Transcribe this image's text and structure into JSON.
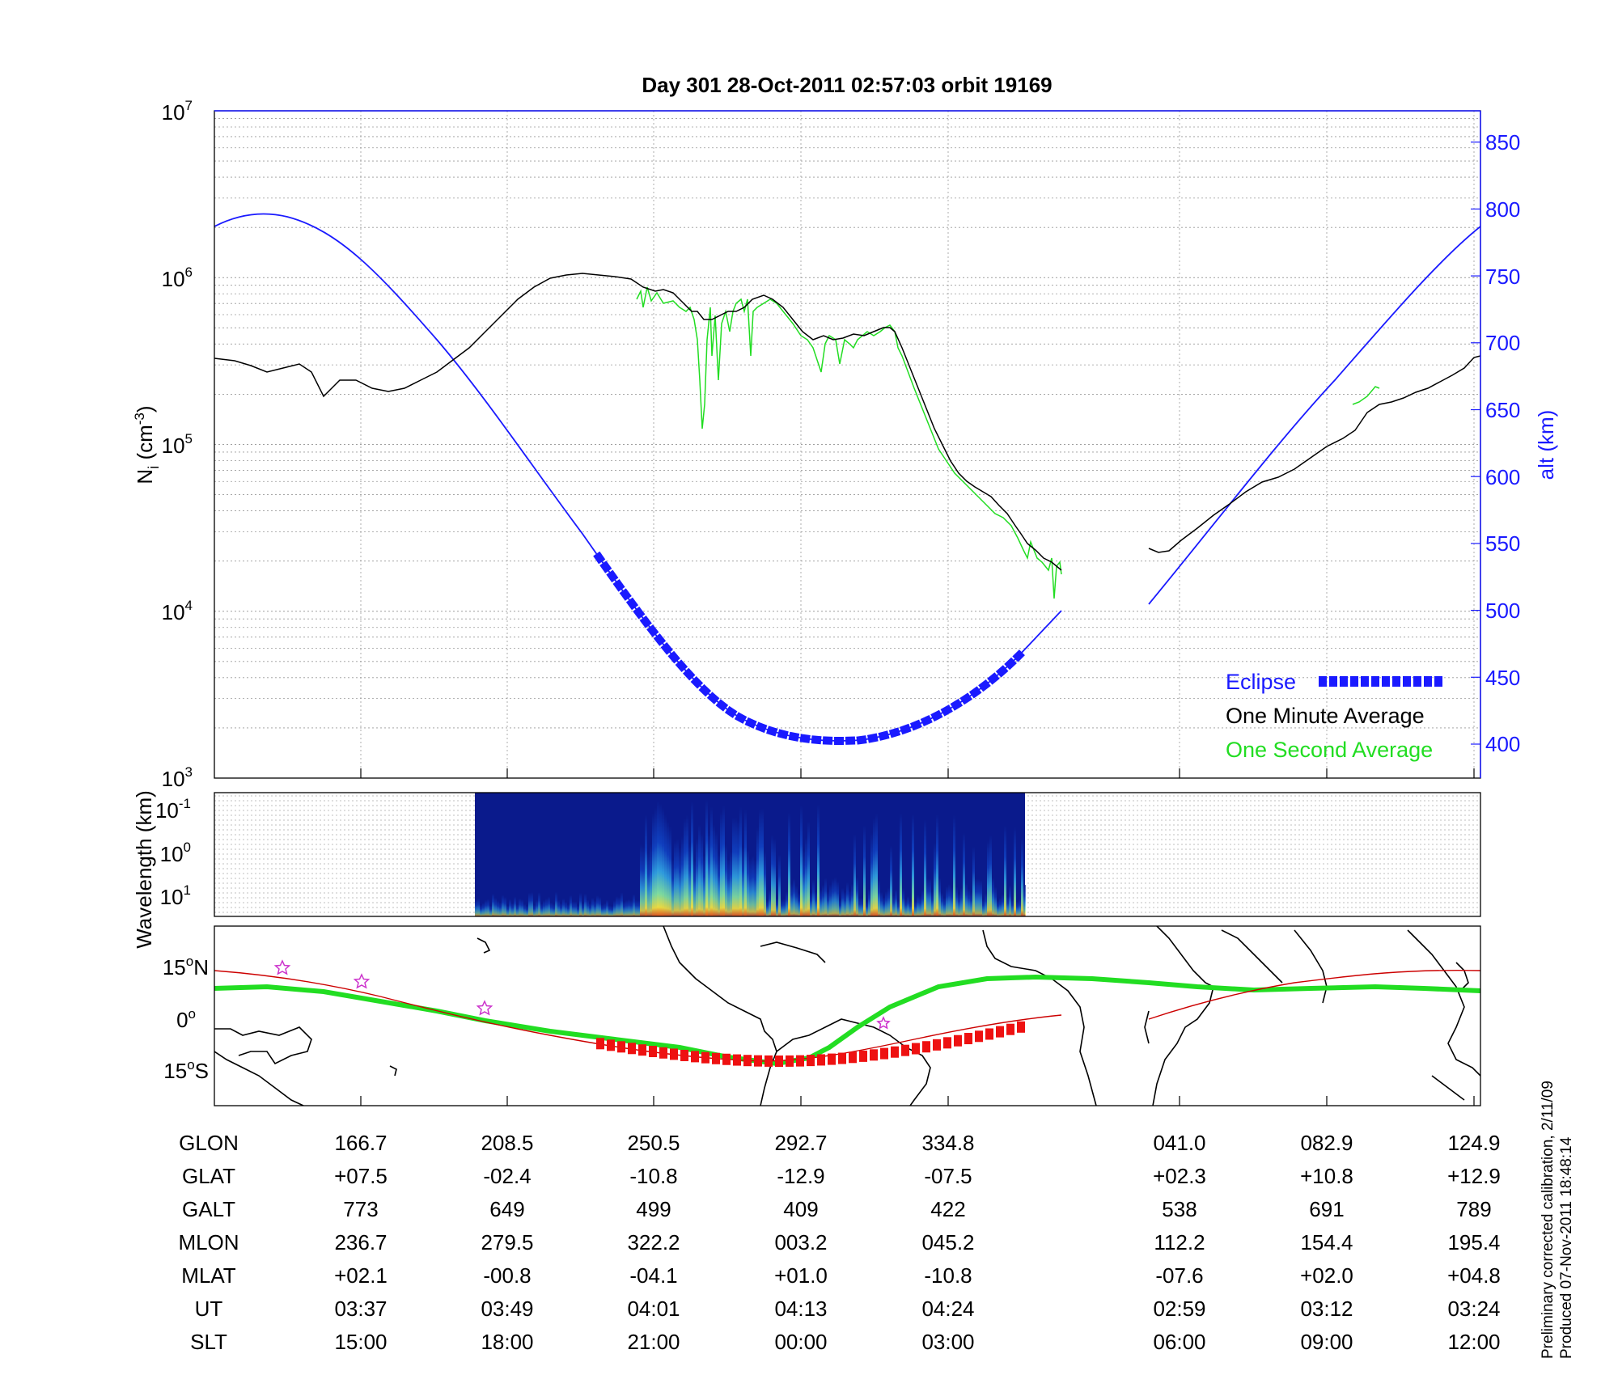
{
  "chart_data": [
    {
      "type": "line",
      "title": "Day 301  28-Oct-2011 02:57:03   orbit 19169",
      "ylabel": "N",
      "ylabel_sub": "i",
      "ylabel_unit": "(cm",
      "ylabel_unit_exp": "-3",
      "ylabel_unit_close": ")",
      "yscale": "log",
      "ylim": [
        1000,
        10000000
      ],
      "y_ticks": [
        {
          "base": "10",
          "exp": "3",
          "value": 1000
        },
        {
          "base": "10",
          "exp": "4",
          "value": 10000
        },
        {
          "base": "10",
          "exp": "5",
          "value": 100000
        },
        {
          "base": "10",
          "exp": "6",
          "value": 1000000
        },
        {
          "base": "10",
          "exp": "7",
          "value": 10000000
        }
      ],
      "y2label": "alt (km)",
      "y2lim": [
        377,
        878
      ],
      "y2_ticks": [
        "400",
        "450",
        "500",
        "550",
        "600",
        "650",
        "700",
        "750",
        "800",
        "850"
      ],
      "grid": true,
      "legend_position": "bottom-right",
      "legend": [
        {
          "label": "Eclipse",
          "color": "#1a1aff"
        },
        {
          "label": "One Minute Average",
          "color": "#000000"
        },
        {
          "label": "One Second Average",
          "color": "#22dd22"
        }
      ],
      "x_unit": "UT (HH:MM)",
      "x_range": [
        "03:25",
        "03:24"
      ],
      "series": [
        {
          "name": "One Minute Average",
          "color": "#000000",
          "segments": [
            [
              [
                "03:25",
                330000
              ],
              [
                "03:28",
                280000
              ],
              [
                "03:30",
                270000
              ],
              [
                "03:33",
                190000
              ],
              [
                "03:36",
                230000
              ],
              [
                "03:40",
                220000
              ],
              [
                "03:45",
                360000
              ],
              [
                "03:50",
                700000
              ],
              [
                "03:55",
                1100000
              ],
              [
                "04:00",
                1000000
              ],
              [
                "04:02",
                900000
              ],
              [
                "04:05",
                800000
              ],
              [
                "04:08",
                670000
              ],
              [
                "04:12",
                760000
              ],
              [
                "04:15",
                600000
              ],
              [
                "04:20",
                450000
              ],
              [
                "04:26",
                300000
              ],
              [
                "04:30",
                80000
              ],
              [
                "04:35",
                35000
              ],
              [
                "04:39",
                17000
              ]
            ],
            [
              [
                "02:56",
                22000
              ],
              [
                "03:00",
                40000
              ],
              [
                "03:05",
                60000
              ],
              [
                "03:10",
                100000
              ],
              [
                "03:15",
                170000
              ],
              [
                "03:20",
                260000
              ],
              [
                "03:24",
                330000
              ]
            ]
          ]
        },
        {
          "name": "One Second Average",
          "color": "#22dd22",
          "segments": [
            [
              [
                "04:02",
                700000
              ],
              [
                "04:04",
                150000
              ],
              [
                "04:05",
                800000
              ],
              [
                "04:07",
                300000
              ],
              [
                "04:09",
                700000
              ],
              [
                "04:11",
                400000
              ],
              [
                "04:14",
                600000
              ],
              [
                "04:17",
                250000
              ],
              [
                "04:20",
                500000
              ],
              [
                "04:30",
                60000
              ],
              [
                "04:37",
                12000
              ],
              [
                "04:39",
                18000
              ]
            ]
          ]
        },
        {
          "name": "alt (km)",
          "color": "#1a1aff",
          "axis": "y2",
          "segments": [
            [
              [
                "03:25",
                790
              ],
              [
                "03:30",
                800
              ],
              [
                "03:37",
                773
              ],
              [
                "03:49",
                649
              ],
              [
                "04:01",
                499
              ],
              [
                "04:13",
                409
              ],
              [
                "04:17",
                402
              ],
              [
                "04:24",
                422
              ],
              [
                "04:35",
                505
              ]
            ],
            [
              [
                "02:56",
                505
              ],
              [
                "02:59",
                538
              ],
              [
                "03:12",
                691
              ],
              [
                "03:24",
                789
              ]
            ]
          ]
        },
        {
          "name": "Eclipse",
          "color": "#1a1aff",
          "axis": "y2",
          "range": [
            "03:56",
            "04:32"
          ]
        }
      ]
    },
    {
      "type": "heatmap",
      "ylabel": "Wavelength (km)",
      "y_ticks": [
        {
          "base": "10",
          "exp": "-1"
        },
        {
          "base": "10",
          "exp": "0"
        },
        {
          "base": "10",
          "exp": "1"
        }
      ],
      "x_range": [
        "03:47",
        "04:32"
      ],
      "note": "power spectrogram, colormap blue→cyan→yellow→red"
    },
    {
      "type": "map",
      "y_ticks": [
        {
          "label": "15",
          "deg": "o",
          "hemi": "N"
        },
        {
          "label": "0",
          "deg": "o",
          "hemi": ""
        },
        {
          "label": "15",
          "deg": "o",
          "hemi": "S"
        }
      ],
      "lines": [
        {
          "name": "orbit ground track",
          "color": "#cc0000"
        },
        {
          "name": "magnetic equator",
          "color": "#22dd22"
        },
        {
          "name": "eclipse segment",
          "color": "#ee1111"
        }
      ]
    }
  ],
  "table": {
    "rows": [
      {
        "label": "GLON",
        "values": [
          "166.7",
          "208.5",
          "250.5",
          "292.7",
          "334.8",
          "041.0",
          "082.9",
          "124.9"
        ]
      },
      {
        "label": "GLAT",
        "values": [
          "+07.5",
          "-02.4",
          "-10.8",
          "-12.9",
          "-07.5",
          "+02.3",
          "+10.8",
          "+12.9"
        ]
      },
      {
        "label": "GALT",
        "values": [
          "773",
          "649",
          "499",
          "409",
          "422",
          "538",
          "691",
          "789"
        ]
      },
      {
        "label": "MLON",
        "values": [
          "236.7",
          "279.5",
          "322.2",
          "003.2",
          "045.2",
          "112.2",
          "154.4",
          "195.4"
        ]
      },
      {
        "label": "MLAT",
        "values": [
          "+02.1",
          "-00.8",
          "-04.1",
          "+01.0",
          "-10.8",
          "-07.6",
          "+02.0",
          "+04.8"
        ]
      },
      {
        "label": "UT",
        "values": [
          "03:37",
          "03:49",
          "04:01",
          "04:13",
          "04:24",
          "02:59",
          "03:12",
          "03:24"
        ]
      },
      {
        "label": "SLT",
        "values": [
          "15:00",
          "18:00",
          "21:00",
          "00:00",
          "03:00",
          "06:00",
          "09:00",
          "12:00"
        ]
      }
    ]
  },
  "notes": {
    "line1": "Preliminary corrected calibration, 2/11/09",
    "line2": "Produced 07-Nov-2011 18:48:14"
  },
  "colors": {
    "altitude": "#1a1aff",
    "one_minute": "#000000",
    "one_second": "#22dd22",
    "eclipse": "#1a1aff",
    "track": "#cc0000",
    "mag_equator": "#22dd22"
  }
}
